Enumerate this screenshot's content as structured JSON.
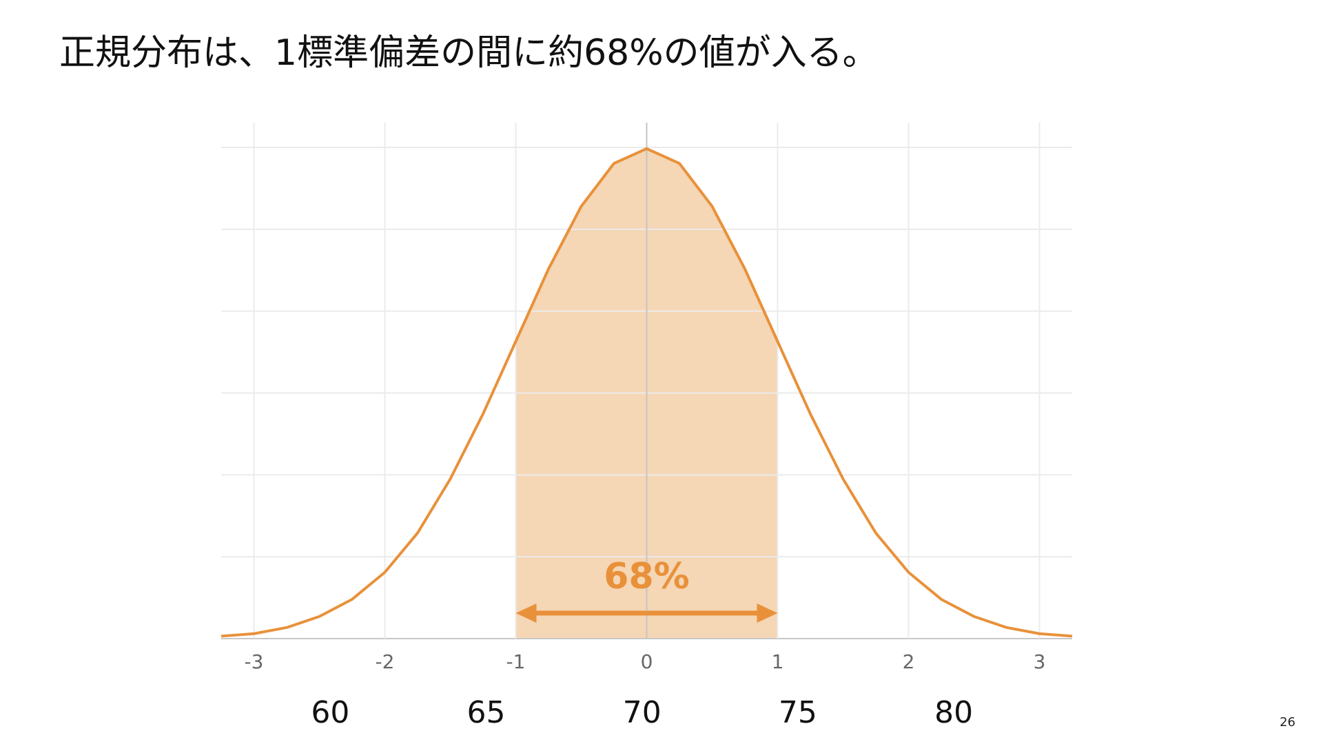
{
  "chart_data": {
    "type": "area",
    "title": "正規分布は、1標準偏差の間に約68%の値が入る。",
    "page_number": "26",
    "x": [
      -3.25,
      -3,
      -2.75,
      -2.5,
      -2.25,
      -2,
      -1.75,
      -1.5,
      -1.25,
      -1,
      -0.75,
      -0.5,
      -0.25,
      0,
      0.25,
      0.5,
      0.75,
      1,
      1.25,
      1.5,
      1.75,
      2,
      2.25,
      2.5,
      2.75,
      3,
      3.25
    ],
    "values": [
      0.002,
      0.004,
      0.009,
      0.018,
      0.032,
      0.054,
      0.086,
      0.13,
      0.183,
      0.242,
      0.301,
      0.352,
      0.387,
      0.399,
      0.387,
      0.352,
      0.301,
      0.242,
      0.183,
      0.13,
      0.086,
      0.054,
      0.032,
      0.018,
      0.009,
      0.004,
      0.002
    ],
    "color": "#e8913a",
    "fill_color": "#f3cfa8",
    "xlim": [
      -3.25,
      3.25
    ],
    "xticks": [
      -3,
      -2,
      -1,
      0,
      1,
      2,
      3
    ],
    "ylim": [
      0,
      0.4
    ],
    "yticks": [
      0,
      0.0667,
      0.1333,
      0.2,
      0.2667,
      0.3333,
      0.4
    ],
    "x2lim": [
      56.5,
      83.8
    ],
    "x2ticks": [
      60,
      65,
      70,
      75,
      80
    ],
    "grid": true,
    "shade_range": [
      -1,
      1
    ],
    "annotation": "68%"
  }
}
